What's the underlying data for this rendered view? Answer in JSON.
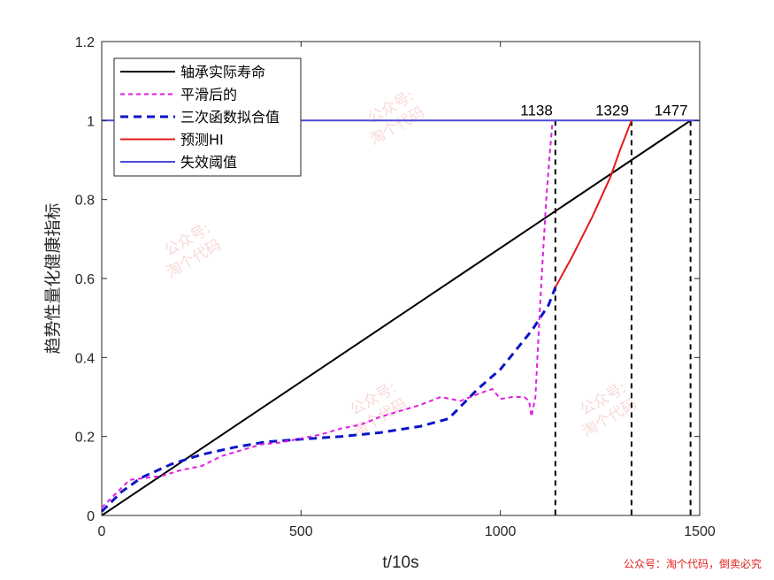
{
  "chart_data": {
    "type": "line",
    "title": "",
    "xlabel": "t/10s",
    "ylabel": "趋势性量化健康指标",
    "xlim": [
      0,
      1500
    ],
    "ylim": [
      0,
      1.2
    ],
    "xticks": [
      0,
      500,
      1000,
      1500
    ],
    "yticks": [
      0,
      0.2,
      0.4,
      0.6,
      0.8,
      1,
      1.2
    ],
    "grid": false,
    "legend_position": "top-left",
    "series": [
      {
        "name": "轴承实际寿命",
        "style": "solid",
        "color": "#000000",
        "x": [
          0,
          1477
        ],
        "y": [
          0,
          1
        ]
      },
      {
        "name": "平滑后的",
        "style": "dotted-dash",
        "color": "#e01ee0",
        "x": [
          0,
          30,
          70,
          110,
          150,
          200,
          250,
          300,
          350,
          400,
          450,
          500,
          550,
          600,
          650,
          700,
          750,
          800,
          850,
          900,
          950,
          980,
          1000,
          1030,
          1060,
          1072,
          1078,
          1088,
          1098,
          1105,
          1115,
          1125,
          1131
        ],
        "y": [
          0.02,
          0.05,
          0.09,
          0.095,
          0.1,
          0.115,
          0.125,
          0.15,
          0.165,
          0.18,
          0.185,
          0.195,
          0.205,
          0.22,
          0.23,
          0.25,
          0.265,
          0.28,
          0.3,
          0.29,
          0.31,
          0.32,
          0.295,
          0.3,
          0.3,
          0.29,
          0.25,
          0.3,
          0.5,
          0.63,
          0.8,
          0.93,
          1.0
        ]
      },
      {
        "name": "三次函数拟合值",
        "style": "dashed",
        "color": "#0a14c8",
        "x": [
          0,
          50,
          100,
          175,
          250,
          330,
          410,
          500,
          600,
          700,
          800,
          870,
          943,
          1000,
          1032,
          1080,
          1121,
          1138
        ],
        "y": [
          0.01,
          0.06,
          0.096,
          0.13,
          0.154,
          0.172,
          0.186,
          0.193,
          0.2,
          0.21,
          0.226,
          0.245,
          0.32,
          0.37,
          0.41,
          0.47,
          0.533,
          0.578
        ]
      },
      {
        "name": "预测HI",
        "style": "solid",
        "color": "#e31a1a",
        "x": [
          1138,
          1180,
          1230,
          1276,
          1300,
          1329
        ],
        "y": [
          0.578,
          0.655,
          0.755,
          0.857,
          0.925,
          1.0
        ]
      },
      {
        "name": "失效阈值",
        "style": "solid",
        "color": "#4b4bd8",
        "x": [
          0,
          1500
        ],
        "y": [
          1,
          1
        ]
      }
    ],
    "vertical_markers": [
      {
        "x": 1138,
        "label": "1138"
      },
      {
        "x": 1329,
        "label": "1329"
      },
      {
        "x": 1477,
        "label": "1477"
      }
    ]
  },
  "watermark": {
    "text_line1": "公众号:",
    "text_line2": "淘个代码"
  },
  "footer_note": "公众号：淘个代码，倒卖必究"
}
